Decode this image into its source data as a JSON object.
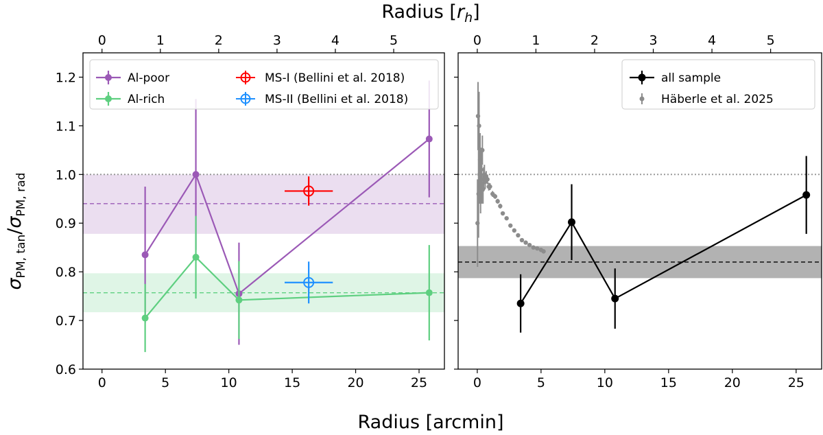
{
  "figure": {
    "xlabel": "Radius [arcmin]",
    "top_xlabel_prefix": "Radius [",
    "top_xlabel_var": "r",
    "top_xlabel_sub": "h",
    "top_xlabel_suffix": "]",
    "ylabel_sigma": "σ",
    "ylabel_sub_tan": "PM, tan",
    "ylabel_slash": "/",
    "ylabel_sub_rad": "PM, rad"
  },
  "chart_data": [
    {
      "type": "scatter",
      "panel": "left",
      "xlim": [
        -1.5,
        27
      ],
      "ylim": [
        0.6,
        1.25
      ],
      "xticks": [
        0,
        5,
        10,
        15,
        20,
        25
      ],
      "xtick_labels": [
        "0",
        "5",
        "10",
        "15",
        "20",
        "25"
      ],
      "yticks": [
        0.6,
        0.7,
        0.8,
        0.9,
        1.0,
        1.1,
        1.2
      ],
      "ytick_labels": [
        "0.6",
        "0.7",
        "0.8",
        "0.9",
        "1.0",
        "1.1",
        "1.2"
      ],
      "top_axis": {
        "unit_arcmin_per_rh": 4.6,
        "ticks": [
          0,
          1,
          2,
          3,
          4,
          5
        ],
        "tick_labels": [
          "0",
          "1",
          "2",
          "3",
          "4",
          "5"
        ]
      },
      "legend": {
        "placement": "top-left",
        "columns": 2
      },
      "reference_line": {
        "y": 1.0,
        "color": "#999999",
        "style": "dotted"
      },
      "series": [
        {
          "name": "Al-poor",
          "color": "#9b59b6",
          "line": true,
          "marker": "circle",
          "x": [
            3.4,
            7.4,
            10.8,
            25.8
          ],
          "y": [
            0.835,
            1.0,
            0.755,
            1.073
          ],
          "yerr": [
            0.14,
            0.155,
            0.105,
            0.12
          ],
          "mean_band": {
            "y": 0.94,
            "low": 0.878,
            "high": 1.0
          }
        },
        {
          "name": "Al-rich",
          "color": "#5ecf80",
          "line": true,
          "marker": "circle",
          "x": [
            3.4,
            7.4,
            10.8,
            25.8
          ],
          "y": [
            0.705,
            0.83,
            0.742,
            0.757
          ],
          "yerr": [
            0.07,
            0.085,
            0.08,
            0.098
          ],
          "mean_band": {
            "y": 0.757,
            "low": 0.717,
            "high": 0.797
          }
        },
        {
          "name": "MS-I (Bellini et al. 2018)",
          "color": "#ff0000",
          "line": false,
          "marker": "open-circle-cross",
          "x": [
            16.3
          ],
          "y": [
            0.966
          ],
          "yerr": [
            0.03
          ],
          "xerr": [
            1.9
          ]
        },
        {
          "name": "MS-II (Bellini et al. 2018)",
          "color": "#1e90ff",
          "line": false,
          "marker": "open-circle-cross",
          "x": [
            16.3
          ],
          "y": [
            0.778
          ],
          "yerr": [
            0.043
          ],
          "xerr": [
            1.9
          ]
        }
      ]
    },
    {
      "type": "scatter",
      "panel": "right",
      "xlim": [
        -1.5,
        27
      ],
      "ylim": [
        0.6,
        1.25
      ],
      "xticks": [
        0,
        5,
        10,
        15,
        20,
        25
      ],
      "xtick_labels": [
        "0",
        "5",
        "10",
        "15",
        "20",
        "25"
      ],
      "top_axis": {
        "unit_arcmin_per_rh": 4.6,
        "ticks": [
          0,
          1,
          2,
          3,
          4,
          5
        ],
        "tick_labels": [
          "0",
          "1",
          "2",
          "3",
          "4",
          "5"
        ]
      },
      "legend": {
        "placement": "top-right",
        "columns": 1
      },
      "reference_line": {
        "y": 1.0,
        "color": "#999999",
        "style": "dotted"
      },
      "series": [
        {
          "name": "all sample",
          "color": "#000000",
          "line": true,
          "marker": "circle",
          "x": [
            3.4,
            7.4,
            10.8,
            25.8
          ],
          "y": [
            0.735,
            0.902,
            0.745,
            0.958
          ],
          "yerr": [
            0.06,
            0.078,
            0.062,
            0.08
          ],
          "mean_band": {
            "y": 0.82,
            "low": 0.787,
            "high": 0.853
          }
        },
        {
          "name": "Häberle et al. 2025",
          "color": "#8c8c8c",
          "line": false,
          "marker": "small-dot",
          "x": [
            0.02,
            0.06,
            0.1,
            0.14,
            0.18,
            0.22,
            0.26,
            0.3,
            0.35,
            0.4,
            0.45,
            0.5,
            0.56,
            0.62,
            0.7,
            0.8,
            0.9,
            1.0,
            1.2,
            1.4,
            1.6,
            1.8,
            2.0,
            2.3,
            2.6,
            2.9,
            3.2,
            3.5,
            3.8,
            4.1,
            4.4,
            4.7,
            5.0,
            5.2
          ],
          "y": [
            0.9,
            1.12,
            0.96,
            1.1,
            1.0,
            1.03,
            0.97,
            1.01,
            0.98,
            1.05,
            0.97,
            0.99,
            1.0,
            0.985,
            0.995,
            0.99,
            0.975,
            0.975,
            0.96,
            0.955,
            0.945,
            0.935,
            0.92,
            0.91,
            0.895,
            0.885,
            0.875,
            0.865,
            0.86,
            0.855,
            0.85,
            0.848,
            0.845,
            0.842
          ],
          "yerr": [
            0.09,
            0.07,
            0.09,
            0.07,
            0.06,
            0.055,
            0.05,
            0.045,
            0.04,
            0.03,
            0.03,
            0.025,
            0.02,
            0.015,
            0.012,
            0.01,
            0.008,
            0.007,
            0.006,
            0.005,
            0.005,
            0.005,
            0.004,
            0.004,
            0.004,
            0.004,
            0.004,
            0.004,
            0.004,
            0.004,
            0.004,
            0.004,
            0.004,
            0.004
          ]
        }
      ]
    }
  ]
}
